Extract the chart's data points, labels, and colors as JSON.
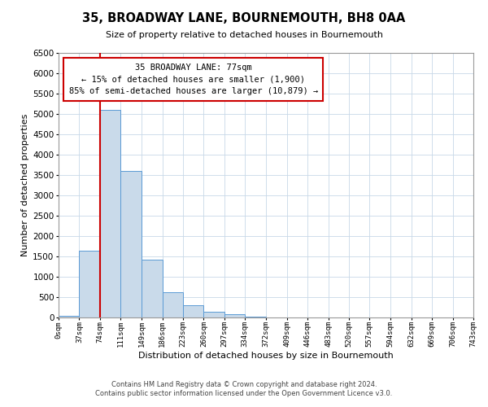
{
  "title": "35, BROADWAY LANE, BOURNEMOUTH, BH8 0AA",
  "subtitle": "Size of property relative to detached houses in Bournemouth",
  "xlabel": "Distribution of detached houses by size in Bournemouth",
  "ylabel": "Number of detached properties",
  "footnote1": "Contains HM Land Registry data © Crown copyright and database right 2024.",
  "footnote2": "Contains public sector information licensed under the Open Government Licence v3.0.",
  "bin_edges": [
    0,
    37,
    74,
    111,
    149,
    186,
    223,
    260,
    297,
    334,
    372,
    409,
    446,
    483,
    520,
    557,
    594,
    632,
    669,
    706,
    743
  ],
  "bin_counts": [
    50,
    1650,
    5100,
    3600,
    1420,
    615,
    305,
    150,
    80,
    30,
    10,
    5,
    0,
    0,
    0,
    0,
    0,
    0,
    0,
    0
  ],
  "tick_labels": [
    "0sqm",
    "37sqm",
    "74sqm",
    "111sqm",
    "149sqm",
    "186sqm",
    "223sqm",
    "260sqm",
    "297sqm",
    "334sqm",
    "372sqm",
    "409sqm",
    "446sqm",
    "483sqm",
    "520sqm",
    "557sqm",
    "594sqm",
    "632sqm",
    "669sqm",
    "706sqm",
    "743sqm"
  ],
  "ylim": [
    0,
    6500
  ],
  "yticks": [
    0,
    500,
    1000,
    1500,
    2000,
    2500,
    3000,
    3500,
    4000,
    4500,
    5000,
    5500,
    6000,
    6500
  ],
  "bar_color": "#c9daea",
  "bar_edge_color": "#5b9bd5",
  "property_line_x": 74,
  "property_line_color": "#cc0000",
  "annotation_box_text": "35 BROADWAY LANE: 77sqm\n← 15% of detached houses are smaller (1,900)\n85% of semi-detached houses are larger (10,879) →",
  "box_edge_color": "#cc0000",
  "background_color": "#ffffff",
  "grid_color": "#c8d8e8"
}
